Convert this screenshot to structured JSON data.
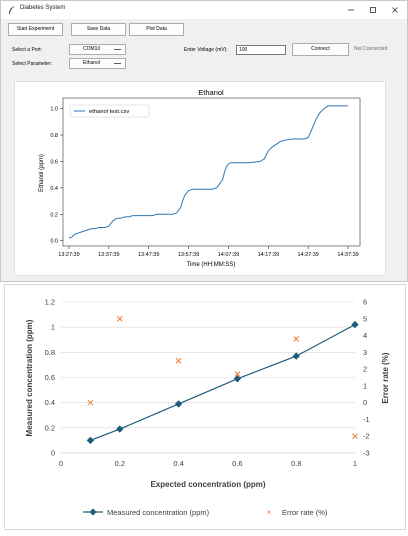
{
  "window": {
    "title": "Diabetes System",
    "icon": "feather-icon"
  },
  "toolbar": {
    "start_label": "Start Experiment",
    "save_label": "Save Data",
    "plot_label": "Plot Data"
  },
  "controls": {
    "port_label": "Select a Port:",
    "port_value": "COM10",
    "param_label": "Select Parameter:",
    "param_value": "Ethanol",
    "voltage_label": "Enter Voltage (mV):",
    "voltage_value": "100",
    "connect_label": "Connect",
    "status_text": "Not Connected"
  },
  "colors": {
    "plot_line": "#2e75b6",
    "xl_series": "#1f5c7a",
    "xl_error": "#ed7d31"
  },
  "plot": {
    "chart_data": {
      "type": "line",
      "title": "Ethanol",
      "xlabel": "Time (HH:MM:SS)",
      "ylabel": "Ethanol (ppm)",
      "legend": "ethanol test.csv",
      "legend_position": "top-left",
      "x_tick_labels": [
        "13:27:39",
        "13:37:39",
        "13:47:39",
        "13:57:39",
        "14:07:39",
        "14:17:39",
        "14:27:39",
        "14:37:39"
      ],
      "y_tick_labels": [
        "0.0",
        "0.2",
        "0.4",
        "0.6",
        "0.8",
        "1.0"
      ],
      "x_unit": "minutes after 13:27:39",
      "xlim": [
        -1.5,
        73
      ],
      "ylim": [
        -0.04,
        1.08
      ],
      "x": [
        0,
        0.8,
        1.5,
        2.5,
        3.5,
        4.5,
        5.5,
        6.5,
        7.5,
        8.2,
        9,
        10,
        10.5,
        11,
        12,
        13,
        14,
        15,
        16,
        17,
        18,
        19,
        20,
        21,
        22,
        23,
        24,
        25,
        26,
        27,
        28,
        28.5,
        29,
        29.5,
        30,
        31,
        32,
        33,
        34,
        35,
        36,
        37,
        38.5,
        39,
        39.5,
        40,
        40.5,
        41,
        42,
        45,
        48,
        49,
        49.5,
        50,
        51,
        52,
        53,
        54,
        56,
        58,
        59,
        60,
        61,
        62,
        63,
        64,
        65,
        65.5,
        66,
        67,
        70
      ],
      "y": [
        0.02,
        0.03,
        0.05,
        0.06,
        0.07,
        0.08,
        0.09,
        0.09,
        0.1,
        0.1,
        0.1,
        0.11,
        0.13,
        0.15,
        0.17,
        0.17,
        0.18,
        0.18,
        0.19,
        0.19,
        0.19,
        0.19,
        0.19,
        0.19,
        0.2,
        0.2,
        0.2,
        0.2,
        0.2,
        0.21,
        0.25,
        0.3,
        0.34,
        0.36,
        0.38,
        0.39,
        0.39,
        0.39,
        0.39,
        0.39,
        0.39,
        0.4,
        0.46,
        0.52,
        0.56,
        0.58,
        0.59,
        0.59,
        0.59,
        0.59,
        0.6,
        0.62,
        0.65,
        0.68,
        0.71,
        0.73,
        0.75,
        0.76,
        0.77,
        0.77,
        0.77,
        0.78,
        0.85,
        0.92,
        0.97,
        1.0,
        1.02,
        1.02,
        1.02,
        1.02,
        1.02
      ],
      "grid": false
    }
  },
  "excel": {
    "chart_data": {
      "type": "scatter",
      "title": "",
      "xlabel": "Expected concentration (ppm)",
      "ylabel": "Measured concentration (ppm)",
      "y2label": "Error rate (%)",
      "xlim": [
        0,
        1
      ],
      "ylim": [
        0,
        1.2
      ],
      "y2lim": [
        -3,
        6
      ],
      "x_ticks": [
        0,
        0.2,
        0.4,
        0.6,
        0.8,
        1
      ],
      "x_tick_labels": [
        "0",
        "0.2",
        "0.4",
        "0.6",
        "0.8",
        "1"
      ],
      "y_ticks": [
        0,
        0.2,
        0.4,
        0.6,
        0.8,
        1,
        1.2
      ],
      "y_tick_labels": [
        "0",
        "0.2",
        "0.4",
        "0.6",
        "0.8",
        "1",
        "1.2"
      ],
      "y2_ticks": [
        -3,
        -2,
        -1,
        0,
        1,
        2,
        3,
        4,
        5,
        6
      ],
      "y2_tick_labels": [
        "-3",
        "-2",
        "-1",
        "0",
        "1",
        "2",
        "3",
        "4",
        "5",
        "6"
      ],
      "grid": "horizontal",
      "legend_position": "bottom",
      "series": [
        {
          "name": "Measured concentration (ppm)",
          "axis": "left",
          "marker": "diamond",
          "line": true,
          "x": [
            0.1,
            0.2,
            0.4,
            0.6,
            0.8,
            1.0
          ],
          "y": [
            0.1,
            0.19,
            0.39,
            0.59,
            0.77,
            1.02
          ]
        },
        {
          "name": "Error rate (%)",
          "axis": "right",
          "marker": "x",
          "line": false,
          "x": [
            0.1,
            0.2,
            0.4,
            0.6,
            0.8,
            1.0
          ],
          "y": [
            0,
            5,
            2.5,
            1.7,
            3.8,
            -2
          ]
        }
      ]
    }
  }
}
